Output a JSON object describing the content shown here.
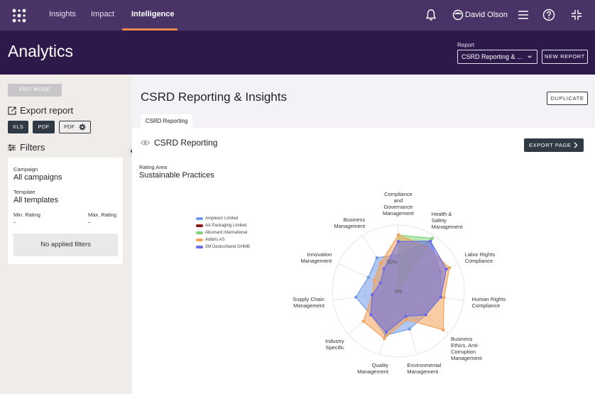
{
  "nav": {
    "items": [
      "Insights",
      "Impact",
      "Intelligence"
    ],
    "active": "Intelligence",
    "user_name": "David Olson"
  },
  "header": {
    "title": "Analytics",
    "report_label": "Report",
    "report_value": "CSRD Reporting & ...",
    "new_report_label": "NEW REPORT"
  },
  "sidebar": {
    "edit_mode_label": "EDIT MODE",
    "export_title": "Export report",
    "export_buttons": [
      "XLS",
      "PDF",
      "PDF"
    ],
    "filters_title": "Filters",
    "campaign_label": "Campaign",
    "campaign_value": "All campaigns",
    "template_label": "Template",
    "template_value": "All templates",
    "min_rating_label": "Min. Rating",
    "min_rating_value": "-",
    "max_rating_label": "Max. Rating",
    "max_rating_value": "-",
    "no_filters": "No applied filters"
  },
  "main": {
    "title": "CSRD Reporting & Insights",
    "duplicate_label": "DUPLICATE",
    "tab_label": "CSRD Reporting",
    "panel_title": "CSRD Reporting",
    "export_page_label": "EXPORT PAGE",
    "rating_area_label": "Rating Area",
    "rating_area_value": "Sustainable Practices"
  },
  "colors": {
    "nav_bg": "#4a3366",
    "header_bg": "#2e1a4a",
    "accent": "#f08a4b"
  },
  "chart_data": {
    "type": "radar",
    "title": "",
    "axes": [
      "Compliance\nand\nGovernance\nManagement",
      "Health &\nSafety\nManagement",
      "Labor Rights\nCompliance",
      "Human Rights\nCompliance",
      "Business\nEthics, Anti-\nCorruption\nManagement",
      "Environmental\nManagement",
      "Quality\nManagement",
      "Industry\nSpecific",
      "Supply Chain\nManagement",
      "Innovation\nManagement",
      "Business\nManagement"
    ],
    "rlim": [
      0,
      100
    ],
    "ticks": [
      "0%",
      "50%"
    ],
    "series": [
      {
        "name": "Amplexor Limited",
        "color": "#6f9be8",
        "values": [
          55,
          90,
          70,
          65,
          55,
          60,
          70,
          55,
          65,
          50,
          60
        ]
      },
      {
        "name": "AA Packaging Limited",
        "color": "#8b1a1a",
        "values": [
          0,
          0,
          0,
          0,
          0,
          0,
          0,
          0,
          0,
          0,
          0
        ]
      },
      {
        "name": "Abumard International",
        "color": "#7fd67a",
        "values": [
          85,
          95,
          0,
          0,
          0,
          0,
          0,
          0,
          0,
          0,
          0
        ]
      },
      {
        "name": "Adibris AS",
        "color": "#f5a35a",
        "values": [
          85,
          80,
          85,
          70,
          90,
          45,
          75,
          70,
          40,
          40,
          50
        ]
      },
      {
        "name": "3M Deutschland GHMB",
        "color": "#6b6ce0",
        "values": [
          75,
          90,
          80,
          65,
          55,
          40,
          65,
          55,
          40,
          30,
          40
        ]
      }
    ]
  }
}
